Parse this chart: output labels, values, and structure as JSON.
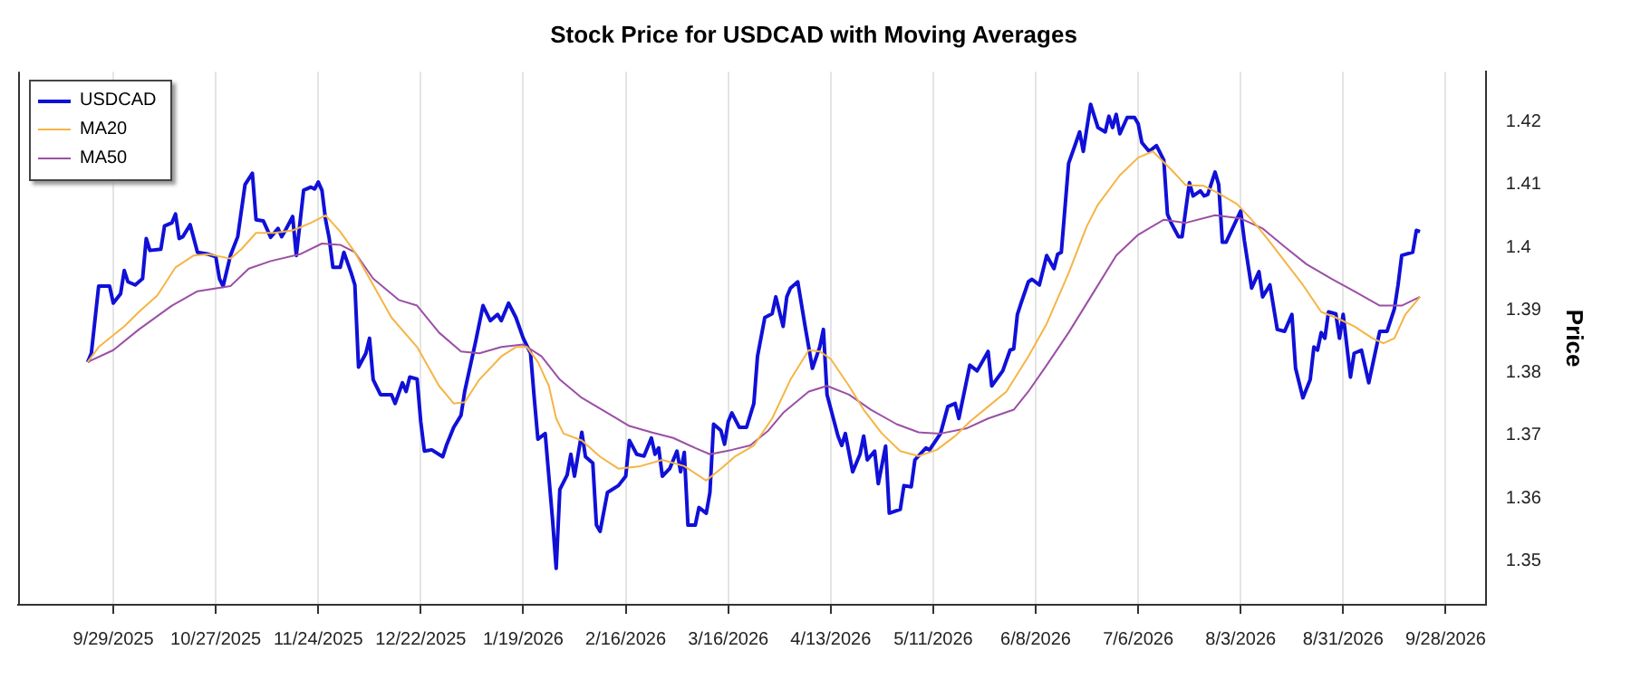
{
  "chart_data": {
    "type": "line",
    "title": "Stock Price for USDCAD with Moving Averages",
    "ylabel": "Price",
    "xlim": [
      "2025-09-03",
      "2026-10-09"
    ],
    "xticks": [
      {
        "value": "2025-09-29",
        "label": "9/29/2025"
      },
      {
        "value": "2025-10-27",
        "label": "10/27/2025"
      },
      {
        "value": "2025-11-24",
        "label": "11/24/2025"
      },
      {
        "value": "2025-12-22",
        "label": "12/22/2025"
      },
      {
        "value": "2026-01-19",
        "label": "1/19/2026"
      },
      {
        "value": "2026-02-16",
        "label": "2/16/2026"
      },
      {
        "value": "2026-03-16",
        "label": "3/16/2026"
      },
      {
        "value": "2026-04-13",
        "label": "4/13/2026"
      },
      {
        "value": "2026-05-11",
        "label": "5/11/2026"
      },
      {
        "value": "2026-06-08",
        "label": "6/8/2026"
      },
      {
        "value": "2026-07-06",
        "label": "7/6/2026"
      },
      {
        "value": "2026-08-03",
        "label": "8/3/2026"
      },
      {
        "value": "2026-08-31",
        "label": "8/31/2026"
      },
      {
        "value": "2026-09-28",
        "label": "9/28/2026"
      }
    ],
    "ylim": [
      1.343,
      1.428
    ],
    "yticks": [
      1.35,
      1.36,
      1.37,
      1.38,
      1.39,
      1.4,
      1.41,
      1.42
    ],
    "grid": "x",
    "legend": "top left",
    "series": [
      {
        "name": "USDCAD",
        "color": "#1010d8",
        "x": [
          "2025-09-22",
          "2025-09-23",
          "2025-09-25",
          "2025-09-28",
          "2025-09-29",
          "2025-10-01",
          "2025-10-02",
          "2025-10-03",
          "2025-10-05",
          "2025-10-07",
          "2025-10-08",
          "2025-10-09",
          "2025-10-12",
          "2025-10-13",
          "2025-10-15",
          "2025-10-16",
          "2025-10-17",
          "2025-10-18",
          "2025-10-20",
          "2025-10-22",
          "2025-10-25",
          "2025-10-27",
          "2025-10-28",
          "2025-10-29",
          "2025-10-31",
          "2025-11-02",
          "2025-11-04",
          "2025-11-06",
          "2025-11-07",
          "2025-11-09",
          "2025-11-11",
          "2025-11-13",
          "2025-11-14",
          "2025-11-15",
          "2025-11-17",
          "2025-11-18",
          "2025-11-20",
          "2025-11-22",
          "2025-11-23",
          "2025-11-24",
          "2025-11-25",
          "2025-11-26",
          "2025-11-27",
          "2025-11-28",
          "2025-11-30",
          "2025-12-01",
          "2025-12-03",
          "2025-12-04",
          "2025-12-05",
          "2025-12-07",
          "2025-12-08",
          "2025-12-09",
          "2025-12-11",
          "2025-12-14",
          "2025-12-15",
          "2025-12-17",
          "2025-12-18",
          "2025-12-19",
          "2025-12-21",
          "2025-12-22",
          "2025-12-23",
          "2025-12-25",
          "2025-12-28",
          "2025-12-29",
          "2025-12-31",
          "2026-01-02",
          "2026-01-03",
          "2026-01-06",
          "2026-01-08",
          "2026-01-10",
          "2026-01-12",
          "2026-01-13",
          "2026-01-15",
          "2026-01-17",
          "2026-01-19",
          "2026-01-21",
          "2026-01-22",
          "2026-01-23",
          "2026-01-25",
          "2026-01-27",
          "2026-01-28",
          "2026-01-29",
          "2026-01-31",
          "2026-02-01",
          "2026-02-02",
          "2026-02-04",
          "2026-02-05",
          "2026-02-07",
          "2026-02-08",
          "2026-02-09",
          "2026-02-11",
          "2026-02-14",
          "2026-02-16",
          "2026-02-17",
          "2026-02-19",
          "2026-02-21",
          "2026-02-23",
          "2026-02-24",
          "2026-02-25",
          "2026-02-26",
          "2026-02-28",
          "2026-03-02",
          "2026-03-03",
          "2026-03-04",
          "2026-03-05",
          "2026-03-07",
          "2026-03-08",
          "2026-03-10",
          "2026-03-11",
          "2026-03-12",
          "2026-03-14",
          "2026-03-15",
          "2026-03-16",
          "2026-03-17",
          "2026-03-19",
          "2026-03-21",
          "2026-03-23",
          "2026-03-24",
          "2026-03-26",
          "2026-03-28",
          "2026-03-29",
          "2026-03-31",
          "2026-04-01",
          "2026-04-02",
          "2026-04-04",
          "2026-04-06",
          "2026-04-08",
          "2026-04-10",
          "2026-04-11",
          "2026-04-12",
          "2026-04-15",
          "2026-04-16",
          "2026-04-17",
          "2026-04-19",
          "2026-04-21",
          "2026-04-22",
          "2026-04-23",
          "2026-04-25",
          "2026-04-26",
          "2026-04-28",
          "2026-04-29",
          "2026-05-02",
          "2026-05-03",
          "2026-05-05",
          "2026-05-06",
          "2026-05-09",
          "2026-05-10",
          "2026-05-13",
          "2026-05-15",
          "2026-05-17",
          "2026-05-18",
          "2026-05-21",
          "2026-05-23",
          "2026-05-26",
          "2026-05-27",
          "2026-05-30",
          "2026-06-01",
          "2026-06-02",
          "2026-06-03",
          "2026-06-04",
          "2026-06-06",
          "2026-06-07",
          "2026-06-09",
          "2026-06-11",
          "2026-06-13",
          "2026-06-14",
          "2026-06-15",
          "2026-06-17",
          "2026-06-19",
          "2026-06-20",
          "2026-06-21",
          "2026-06-23",
          "2026-06-25",
          "2026-06-27",
          "2026-06-28",
          "2026-06-29",
          "2026-06-30",
          "2026-07-01",
          "2026-07-03",
          "2026-07-05",
          "2026-07-06",
          "2026-07-07",
          "2026-07-09",
          "2026-07-11",
          "2026-07-13",
          "2026-07-14",
          "2026-07-15",
          "2026-07-17",
          "2026-07-18",
          "2026-07-20",
          "2026-07-21",
          "2026-07-23",
          "2026-07-24",
          "2026-07-25",
          "2026-07-27",
          "2026-07-28",
          "2026-07-29",
          "2026-07-30",
          "2026-08-03",
          "2026-08-04",
          "2026-08-06",
          "2026-08-08",
          "2026-08-09",
          "2026-08-11",
          "2026-08-13",
          "2026-08-15",
          "2026-08-17",
          "2026-08-18",
          "2026-08-20",
          "2026-08-22",
          "2026-08-23",
          "2026-08-24",
          "2026-08-25",
          "2026-08-26",
          "2026-08-27",
          "2026-08-29",
          "2026-08-30",
          "2026-08-31",
          "2026-09-02",
          "2026-09-03",
          "2026-09-05",
          "2026-09-07",
          "2026-09-10",
          "2026-09-12",
          "2026-09-14",
          "2026-09-15",
          "2026-09-16",
          "2026-09-19",
          "2026-09-20",
          "2026-09-21"
        ],
        "values": [
          1.3817,
          1.3831,
          1.3938,
          1.3938,
          1.3911,
          1.3926,
          1.3963,
          1.3945,
          1.394,
          1.395,
          1.4014,
          1.3995,
          1.3997,
          1.4034,
          1.4039,
          1.4053,
          1.4014,
          1.4017,
          1.4036,
          1.3992,
          1.3989,
          1.3985,
          1.395,
          1.3938,
          1.3987,
          1.4017,
          1.41,
          1.4118,
          1.4044,
          1.4042,
          1.4016,
          1.403,
          1.4017,
          1.4027,
          1.4049,
          1.3987,
          1.4091,
          1.4096,
          1.4093,
          1.4104,
          1.4091,
          1.4044,
          1.4014,
          1.3968,
          1.3968,
          1.3992,
          1.3959,
          1.394,
          1.3809,
          1.3831,
          1.3855,
          1.3789,
          1.3765,
          1.3765,
          1.3751,
          1.3784,
          1.377,
          1.3793,
          1.379,
          1.3722,
          1.3675,
          1.3677,
          1.3666,
          1.3684,
          1.3713,
          1.3732,
          1.377,
          1.385,
          1.3907,
          1.3883,
          1.3893,
          1.3883,
          1.3911,
          1.3888,
          1.3855,
          1.3831,
          1.376,
          1.3694,
          1.3703,
          1.3566,
          1.3488,
          1.3614,
          1.3637,
          1.367,
          1.3635,
          1.3705,
          1.3666,
          1.3656,
          1.3557,
          1.3547,
          1.3609,
          1.362,
          1.3635,
          1.3692,
          1.367,
          1.3667,
          1.3696,
          1.367,
          1.368,
          1.3635,
          1.3647,
          1.3675,
          1.3642,
          1.3673,
          1.3557,
          1.3557,
          1.3585,
          1.3576,
          1.3609,
          1.3718,
          1.3708,
          1.3686,
          1.3722,
          1.3736,
          1.3713,
          1.3713,
          1.3751,
          1.3826,
          1.3888,
          1.3894,
          1.3921,
          1.3874,
          1.3921,
          1.3935,
          1.3945,
          1.3874,
          1.3807,
          1.3841,
          1.3869,
          1.3765,
          1.3699,
          1.3684,
          1.3703,
          1.3642,
          1.367,
          1.3699,
          1.3661,
          1.3675,
          1.3623,
          1.3683,
          1.3576,
          1.3582,
          1.362,
          1.3618,
          1.3661,
          1.368,
          1.3677,
          1.3703,
          1.3746,
          1.3751,
          1.3727,
          1.3812,
          1.3803,
          1.3834,
          1.3779,
          1.3803,
          1.3836,
          1.3838,
          1.3893,
          1.3911,
          1.3945,
          1.3949,
          1.394,
          1.3987,
          1.3966,
          1.3989,
          1.3992,
          1.4134,
          1.4167,
          1.4184,
          1.4153,
          1.4228,
          1.4191,
          1.4184,
          1.4209,
          1.4191,
          1.4212,
          1.4181,
          1.4207,
          1.4207,
          1.4197,
          1.4167,
          1.4153,
          1.4162,
          1.4139,
          1.4053,
          1.4039,
          1.4017,
          1.4017,
          1.4103,
          1.4082,
          1.409,
          1.4082,
          1.4084,
          1.412,
          1.41,
          1.4008,
          1.4008,
          1.4058,
          1.4011,
          1.3935,
          1.3961,
          1.3921,
          1.394,
          1.3869,
          1.3866,
          1.3893,
          1.3807,
          1.376,
          1.3789,
          1.3841,
          1.3836,
          1.3864,
          1.3855,
          1.3897,
          1.3894,
          1.3855,
          1.3893,
          1.3793,
          1.3831,
          1.3836,
          1.3784,
          1.3866,
          1.3866,
          1.3902,
          1.394,
          1.3987,
          1.3992,
          1.4027,
          1.4025
        ]
      },
      {
        "name": "MA20",
        "color": "#f5b545",
        "x": [
          "2025-09-22",
          "2025-09-25",
          "2025-10-02",
          "2025-10-06",
          "2025-10-11",
          "2025-10-16",
          "2025-10-21",
          "2025-10-25",
          "2025-10-31",
          "2025-11-03",
          "2025-11-07",
          "2025-11-12",
          "2025-11-17",
          "2025-11-22",
          "2025-11-26",
          "2025-11-30",
          "2025-12-04",
          "2025-12-09",
          "2025-12-14",
          "2025-12-21",
          "2025-12-27",
          "2025-12-31",
          "2026-01-03",
          "2026-01-07",
          "2026-01-13",
          "2026-01-17",
          "2026-01-20",
          "2026-01-23",
          "2026-01-26",
          "2026-01-28",
          "2026-01-30",
          "2026-02-04",
          "2026-02-09",
          "2026-02-14",
          "2026-02-20",
          "2026-02-26",
          "2026-03-04",
          "2026-03-10",
          "2026-03-14",
          "2026-03-18",
          "2026-03-23",
          "2026-03-28",
          "2026-04-02",
          "2026-04-07",
          "2026-04-10",
          "2026-04-13",
          "2026-04-18",
          "2026-04-22",
          "2026-04-27",
          "2026-05-02",
          "2026-05-07",
          "2026-05-12",
          "2026-05-17",
          "2026-05-21",
          "2026-05-26",
          "2026-05-31",
          "2026-06-06",
          "2026-06-11",
          "2026-06-17",
          "2026-06-22",
          "2026-06-25",
          "2026-07-01",
          "2026-07-06",
          "2026-07-10",
          "2026-07-15",
          "2026-07-19",
          "2026-07-24",
          "2026-07-28",
          "2026-08-02",
          "2026-08-06",
          "2026-08-10",
          "2026-08-15",
          "2026-08-20",
          "2026-08-25",
          "2026-08-29",
          "2026-09-03",
          "2026-09-08",
          "2026-09-11",
          "2026-09-14",
          "2026-09-17",
          "2026-09-21"
        ],
        "values": [
          1.3817,
          1.3841,
          1.3874,
          1.3897,
          1.3923,
          1.3968,
          1.3987,
          1.3989,
          1.3982,
          1.3997,
          1.4023,
          1.4023,
          1.4027,
          1.4039,
          1.4051,
          1.4025,
          1.3992,
          1.394,
          1.3888,
          1.3841,
          1.3779,
          1.3751,
          1.3753,
          1.3789,
          1.3826,
          1.3841,
          1.3841,
          1.3817,
          1.3779,
          1.3727,
          1.3703,
          1.3692,
          1.3666,
          1.3647,
          1.3651,
          1.3661,
          1.3651,
          1.3628,
          1.3647,
          1.3667,
          1.3684,
          1.3727,
          1.3789,
          1.3836,
          1.3834,
          1.3822,
          1.3779,
          1.3741,
          1.3703,
          1.3675,
          1.3667,
          1.3677,
          1.3699,
          1.3722,
          1.3746,
          1.377,
          1.3826,
          1.3878,
          1.3959,
          1.4034,
          1.4068,
          1.4115,
          1.4143,
          1.4153,
          1.4124,
          1.4099,
          1.4098,
          1.4086,
          1.4069,
          1.4044,
          1.4016,
          1.3978,
          1.394,
          1.3897,
          1.3888,
          1.3874,
          1.3855,
          1.3847,
          1.3855,
          1.3893,
          1.3921
        ]
      },
      {
        "name": "MA50",
        "color": "#9b4fa5",
        "x": [
          "2025-09-22",
          "2025-09-29",
          "2025-10-06",
          "2025-10-15",
          "2025-10-22",
          "2025-10-31",
          "2025-11-05",
          "2025-11-11",
          "2025-11-19",
          "2025-11-25",
          "2025-11-30",
          "2025-12-04",
          "2025-12-09",
          "2025-12-16",
          "2025-12-21",
          "2025-12-27",
          "2026-01-02",
          "2026-01-07",
          "2026-01-13",
          "2026-01-19",
          "2026-01-24",
          "2026-01-29",
          "2026-02-04",
          "2026-02-11",
          "2026-02-17",
          "2026-02-23",
          "2026-03-01",
          "2026-03-07",
          "2026-03-11",
          "2026-03-17",
          "2026-03-22",
          "2026-03-27",
          "2026-03-31",
          "2026-04-07",
          "2026-04-12",
          "2026-04-18",
          "2026-04-24",
          "2026-05-01",
          "2026-05-07",
          "2026-05-13",
          "2026-05-20",
          "2026-05-26",
          "2026-06-02",
          "2026-06-06",
          "2026-06-11",
          "2026-06-17",
          "2026-06-24",
          "2026-06-30",
          "2026-07-06",
          "2026-07-13",
          "2026-07-19",
          "2026-07-27",
          "2026-08-03",
          "2026-08-09",
          "2026-08-15",
          "2026-08-21",
          "2026-08-28",
          "2026-09-03",
          "2026-09-10",
          "2026-09-16",
          "2026-09-21"
        ],
        "values": [
          1.3817,
          1.3836,
          1.3869,
          1.3907,
          1.393,
          1.3938,
          1.3966,
          1.3978,
          1.3989,
          1.4006,
          1.4004,
          1.3992,
          1.395,
          1.3916,
          1.3907,
          1.3864,
          1.3834,
          1.3831,
          1.3841,
          1.3845,
          1.3826,
          1.3789,
          1.376,
          1.3736,
          1.3715,
          1.3705,
          1.3696,
          1.368,
          1.367,
          1.3677,
          1.3684,
          1.3708,
          1.3736,
          1.377,
          1.3779,
          1.3765,
          1.3741,
          1.3718,
          1.3705,
          1.3703,
          1.3711,
          1.3727,
          1.3741,
          1.377,
          1.3812,
          1.3864,
          1.393,
          1.3987,
          1.402,
          1.4044,
          1.4039,
          1.4051,
          1.4046,
          1.403,
          1.4001,
          1.3973,
          1.3949,
          1.393,
          1.3907,
          1.3907,
          1.3921
        ]
      }
    ]
  }
}
